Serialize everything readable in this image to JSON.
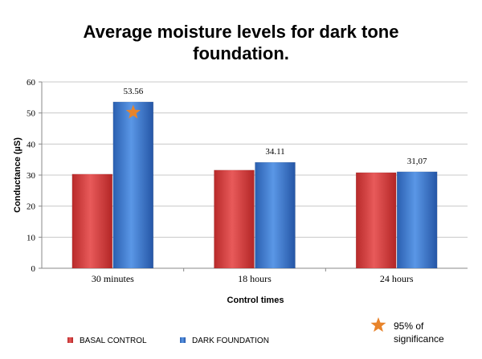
{
  "chart_data": {
    "type": "bar",
    "title_lines": [
      "Average moisture levels for dark tone",
      "foundation."
    ],
    "xlabel": "Control times",
    "ylabel": "Conductance (µS)",
    "ylim": [
      0,
      60
    ],
    "yticks": [
      0,
      10,
      20,
      30,
      40,
      50,
      60
    ],
    "categories": [
      "30 minutes",
      "18 hours",
      "24 hours"
    ],
    "series": [
      {
        "name": "BASAL CONTROL",
        "values": [
          30.3,
          31.6,
          30.8
        ],
        "color": "#d43a3a"
      },
      {
        "name": "DARK FOUNDATION",
        "values": [
          53.56,
          34.11,
          31.07
        ],
        "color": "#3a78cc",
        "labels": [
          "53.56",
          "34.11",
          "31,07"
        ]
      }
    ],
    "significance": {
      "category": "30 minutes",
      "series": "DARK FOUNDATION",
      "marker": "star",
      "color": "#e8842b",
      "legend_label_lines": [
        "95% of",
        "significance"
      ]
    },
    "grid": true,
    "legend_position": "bottom"
  }
}
